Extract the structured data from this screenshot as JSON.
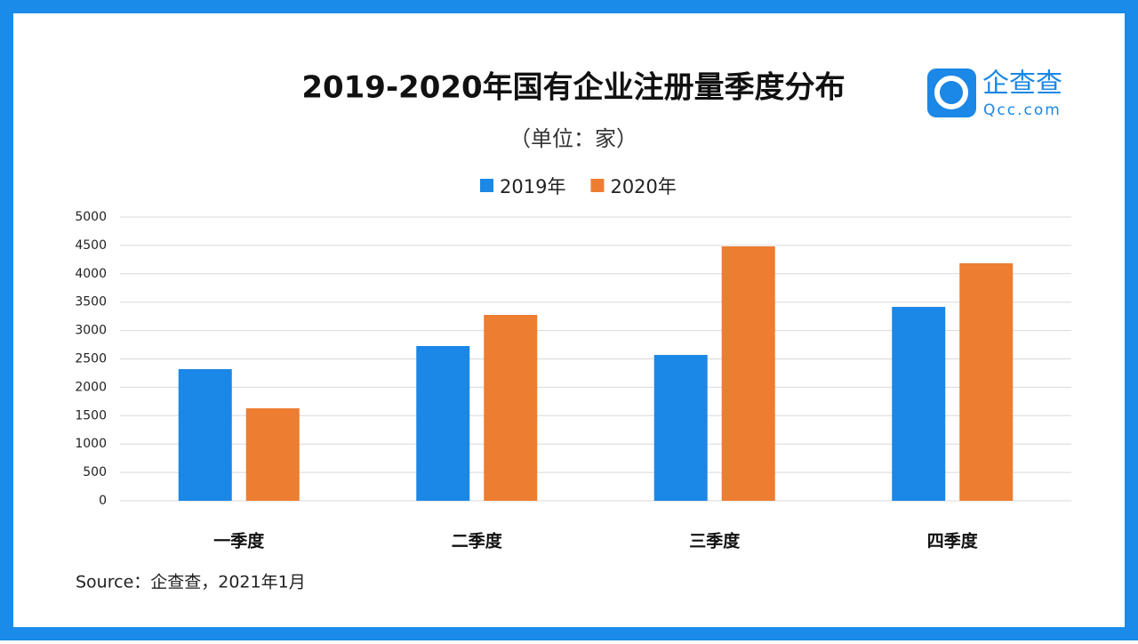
{
  "chart_data": {
    "type": "bar",
    "title": "2019-2020年国有企业注册量季度分布",
    "subtitle": "（单位：家）",
    "source": "Source：企查查，2021年1月",
    "logo": {
      "name": "企查查",
      "domain": "Qcc.com"
    },
    "categories": [
      "一季度",
      "二季度",
      "三季度",
      "四季度"
    ],
    "series": [
      {
        "name": "2019年",
        "color": "#1b87e6",
        "values": [
          2320,
          2727,
          2570,
          3417
        ]
      },
      {
        "name": "2020年",
        "color": "#ed7d31",
        "values": [
          1630,
          3276,
          4483,
          4185
        ]
      }
    ],
    "ylim": [
      0,
      5000
    ],
    "yticks": [
      0,
      500,
      1000,
      1500,
      2000,
      2500,
      3000,
      3500,
      4000,
      4500,
      5000
    ],
    "grid": true
  }
}
